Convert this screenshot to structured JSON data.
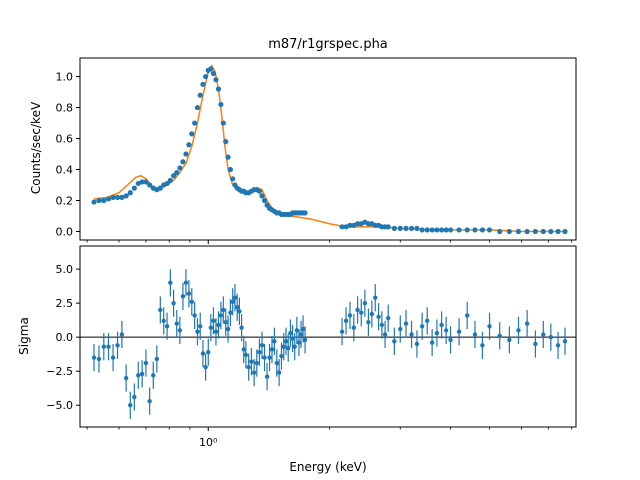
{
  "chart_data": [
    {
      "type": "scatter",
      "title": "m87/r1grspec.pha",
      "xlabel": "",
      "ylabel": "Counts/sec/keV",
      "xscale": "log",
      "xlim": [
        0.48,
        8.2
      ],
      "ylim": [
        -0.055,
        1.12
      ],
      "yticks": [
        0.0,
        0.2,
        0.4,
        0.6,
        0.8,
        1.0
      ],
      "ytick_labels": [
        "0.0",
        "0.2",
        "0.4",
        "0.6",
        "0.8",
        "1.0"
      ],
      "xtick_labels_hidden": true,
      "colors": {
        "data": "#1f77b4",
        "model": "#ff7f0e"
      },
      "series": [
        {
          "kind": "points",
          "x": [
            0.52,
            0.535,
            0.55,
            0.565,
            0.58,
            0.595,
            0.61,
            0.625,
            0.64,
            0.655,
            0.67,
            0.685,
            0.7,
            0.715,
            0.73,
            0.745,
            0.76,
            0.775,
            0.79,
            0.805,
            0.82,
            0.835,
            0.85,
            0.865,
            0.88,
            0.895,
            0.91,
            0.925,
            0.94,
            0.955,
            0.97,
            0.985,
            1.0,
            1.015,
            1.03,
            1.045,
            1.06,
            1.075,
            1.09,
            1.105,
            1.12,
            1.135,
            1.15,
            1.165,
            1.18,
            1.195,
            1.21,
            1.225,
            1.24,
            1.26,
            1.28,
            1.3,
            1.32,
            1.34,
            1.36,
            1.38,
            1.4,
            1.42,
            1.44,
            1.46,
            1.48,
            1.5,
            1.52,
            1.54,
            1.56,
            1.58,
            1.6,
            1.62,
            1.64,
            1.66,
            1.68,
            1.7,
            1.72,
            1.74,
            2.15,
            2.2,
            2.25,
            2.3,
            2.35,
            2.4,
            2.45,
            2.5,
            2.55,
            2.6,
            2.65,
            2.7,
            2.75,
            2.8,
            2.9,
            3.0,
            3.1,
            3.2,
            3.3,
            3.4,
            3.5,
            3.6,
            3.7,
            3.8,
            3.9,
            4.0,
            4.2,
            4.4,
            4.6,
            4.8,
            5.0,
            5.3,
            5.6,
            5.9,
            6.2,
            6.5,
            6.8,
            7.1,
            7.4,
            7.7
          ],
          "y": [
            0.19,
            0.2,
            0.2,
            0.21,
            0.22,
            0.22,
            0.22,
            0.23,
            0.25,
            0.28,
            0.31,
            0.32,
            0.32,
            0.3,
            0.28,
            0.27,
            0.28,
            0.3,
            0.31,
            0.33,
            0.36,
            0.38,
            0.41,
            0.45,
            0.5,
            0.56,
            0.63,
            0.7,
            0.8,
            0.88,
            0.95,
            1.0,
            1.04,
            1.05,
            1.02,
            0.98,
            0.92,
            0.82,
            0.7,
            0.58,
            0.48,
            0.4,
            0.34,
            0.3,
            0.28,
            0.27,
            0.26,
            0.26,
            0.25,
            0.25,
            0.26,
            0.27,
            0.27,
            0.26,
            0.23,
            0.2,
            0.17,
            0.15,
            0.14,
            0.13,
            0.12,
            0.12,
            0.11,
            0.11,
            0.11,
            0.11,
            0.11,
            0.12,
            0.12,
            0.12,
            0.12,
            0.12,
            0.12,
            0.12,
            0.03,
            0.03,
            0.04,
            0.04,
            0.05,
            0.05,
            0.06,
            0.05,
            0.05,
            0.04,
            0.04,
            0.03,
            0.03,
            0.03,
            0.02,
            0.02,
            0.02,
            0.02,
            0.02,
            0.01,
            0.01,
            0.01,
            0.01,
            0.01,
            0.01,
            0.01,
            0.01,
            0.01,
            0.01,
            0.01,
            0.01,
            0.0,
            0.0,
            0.0,
            0.0,
            0.0,
            0.0,
            0.0,
            0.0,
            0.0
          ]
        },
        {
          "kind": "model-line",
          "x": [
            0.52,
            0.56,
            0.6,
            0.63,
            0.66,
            0.68,
            0.7,
            0.72,
            0.74,
            0.76,
            0.78,
            0.8,
            0.82,
            0.85,
            0.88,
            0.91,
            0.94,
            0.97,
            1.0,
            1.02,
            1.04,
            1.06,
            1.08,
            1.1,
            1.12,
            1.15,
            1.18,
            1.22,
            1.26,
            1.3,
            1.33,
            1.36,
            1.4,
            1.45,
            1.5,
            1.55,
            1.6,
            1.7,
            1.8,
            2.0,
            2.2,
            2.4,
            2.6,
            3.0,
            3.5,
            4.0,
            5.0,
            6.0,
            7.0,
            7.7
          ],
          "y": [
            0.21,
            0.22,
            0.25,
            0.3,
            0.35,
            0.36,
            0.34,
            0.3,
            0.28,
            0.28,
            0.3,
            0.31,
            0.33,
            0.38,
            0.44,
            0.55,
            0.7,
            0.88,
            1.03,
            1.07,
            1.03,
            0.92,
            0.75,
            0.55,
            0.4,
            0.3,
            0.27,
            0.25,
            0.25,
            0.27,
            0.28,
            0.27,
            0.2,
            0.14,
            0.12,
            0.11,
            0.1,
            0.09,
            0.08,
            0.05,
            0.03,
            0.03,
            0.03,
            0.02,
            0.01,
            0.01,
            0.01,
            0.0,
            0.0,
            0.0
          ]
        }
      ]
    },
    {
      "type": "scatter",
      "title": "",
      "xlabel": "Energy (keV)",
      "ylabel": "Sigma",
      "xscale": "log",
      "xlim": [
        0.48,
        8.2
      ],
      "ylim": [
        -6.6,
        6.7
      ],
      "yticks": [
        -5.0,
        -2.5,
        0.0,
        2.5,
        5.0
      ],
      "ytick_labels": [
        "−5.0",
        "−2.5",
        "0.0",
        "2.5",
        "5.0"
      ],
      "xtick_major_label": "10⁰",
      "reference_line_y": 0,
      "series": [
        {
          "kind": "points-with-errorbars",
          "error": 1.0,
          "x": [
            0.52,
            0.535,
            0.55,
            0.565,
            0.58,
            0.595,
            0.61,
            0.625,
            0.64,
            0.655,
            0.67,
            0.685,
            0.7,
            0.715,
            0.73,
            0.745,
            0.76,
            0.775,
            0.79,
            0.805,
            0.82,
            0.835,
            0.85,
            0.865,
            0.88,
            0.895,
            0.91,
            0.925,
            0.94,
            0.955,
            0.97,
            0.985,
            1.0,
            1.015,
            1.03,
            1.045,
            1.06,
            1.075,
            1.09,
            1.105,
            1.12,
            1.135,
            1.15,
            1.165,
            1.18,
            1.195,
            1.21,
            1.225,
            1.24,
            1.26,
            1.28,
            1.3,
            1.32,
            1.34,
            1.36,
            1.38,
            1.4,
            1.42,
            1.44,
            1.46,
            1.48,
            1.5,
            1.52,
            1.54,
            1.56,
            1.58,
            1.6,
            1.62,
            1.64,
            1.66,
            1.68,
            1.7,
            1.72,
            1.74,
            2.15,
            2.2,
            2.25,
            2.3,
            2.35,
            2.4,
            2.45,
            2.5,
            2.55,
            2.6,
            2.65,
            2.7,
            2.75,
            2.8,
            2.9,
            3.0,
            3.1,
            3.2,
            3.3,
            3.4,
            3.5,
            3.6,
            3.7,
            3.8,
            3.9,
            4.0,
            4.2,
            4.4,
            4.6,
            4.8,
            5.0,
            5.3,
            5.6,
            5.9,
            6.2,
            6.5,
            6.8,
            7.1,
            7.4,
            7.7
          ],
          "y": [
            -1.5,
            -1.6,
            -0.7,
            -0.7,
            -1.5,
            -0.6,
            0.2,
            -3.0,
            -5.0,
            -4.4,
            -2.8,
            -2.7,
            -1.9,
            -4.7,
            -2.8,
            -1.6,
            2.0,
            1.2,
            0.8,
            4.0,
            2.5,
            1.0,
            0.5,
            3.0,
            4.0,
            3.2,
            2.6,
            1.6,
            0.4,
            0.8,
            -1.2,
            -2.2,
            -1.1,
            0.7,
            1.2,
            0.4,
            0.9,
            1.6,
            2.0,
            1.1,
            0.6,
            1.8,
            2.6,
            2.9,
            2.2,
            1.9,
            0.7,
            -0.9,
            -1.3,
            -2.2,
            -1.8,
            -2.6,
            -1.9,
            -1.1,
            -0.6,
            -1.5,
            -2.9,
            -1.5,
            -0.9,
            -0.3,
            -1.9,
            -2.6,
            -1.4,
            -0.7,
            -0.3,
            -0.8,
            0.3,
            -0.1,
            -0.7,
            0.5,
            -0.4,
            0.2,
            0.6,
            -0.2,
            0.4,
            1.2,
            1.6,
            0.7,
            2.0,
            1.8,
            2.5,
            1.1,
            1.7,
            2.9,
            1.5,
            0.9,
            0.2,
            1.4,
            -0.3,
            0.6,
            1.0,
            0.2,
            -0.5,
            0.8,
            1.2,
            -0.4,
            0.3,
            0.9,
            0.5,
            -0.2,
            0.4,
            1.6,
            0.2,
            -0.6,
            0.8,
            0.1,
            -0.2,
            0.5,
            1.0,
            -0.5,
            0.2,
            0.0,
            -0.6,
            -0.3
          ]
        }
      ]
    }
  ]
}
